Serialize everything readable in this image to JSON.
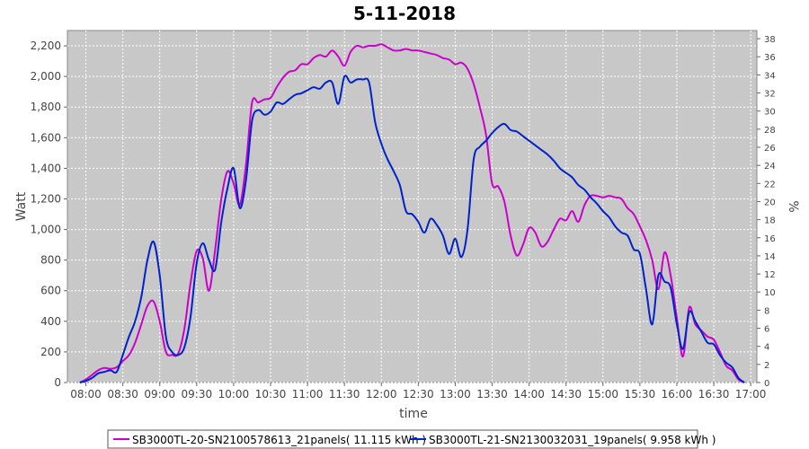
{
  "chart_data": {
    "type": "line",
    "title": "5-11-2018",
    "xlabel": "time",
    "ylabel": "Watt",
    "ylabel_right": "%",
    "xlim": [
      "07:45",
      "17:05"
    ],
    "ylim": [
      0,
      2300
    ],
    "ylim_right": [
      0,
      38.9
    ],
    "grid": true,
    "legend_position": "bottom",
    "x_ticks": [
      "08:00",
      "08:30",
      "09:00",
      "09:30",
      "10:00",
      "10:30",
      "11:00",
      "11:30",
      "12:00",
      "12:30",
      "13:00",
      "13:30",
      "14:00",
      "14:30",
      "15:00",
      "15:30",
      "16:00",
      "16:30",
      "17:00"
    ],
    "y_ticks": [
      "0",
      "200",
      "400",
      "600",
      "800",
      "1,000",
      "1,200",
      "1,400",
      "1,600",
      "1,800",
      "2,000",
      "2,200"
    ],
    "y_ticks_values": [
      0,
      200,
      400,
      600,
      800,
      1000,
      1200,
      1400,
      1600,
      1800,
      2000,
      2200
    ],
    "y_ticks_right": [
      "0",
      "2",
      "4",
      "6",
      "8",
      "10",
      "12",
      "14",
      "16",
      "18",
      "20",
      "22",
      "24",
      "26",
      "28",
      "30",
      "32",
      "34",
      "36",
      "38"
    ],
    "series": [
      {
        "name": "SB3000TL-20-SN2100578613_21panels( 11.115 kWh )",
        "color": "#cc00cc",
        "points": [
          [
            "07:55",
            0
          ],
          [
            "08:00",
            20
          ],
          [
            "08:05",
            50
          ],
          [
            "08:10",
            80
          ],
          [
            "08:15",
            95
          ],
          [
            "08:20",
            90
          ],
          [
            "08:25",
            100
          ],
          [
            "08:30",
            140
          ],
          [
            "08:35",
            180
          ],
          [
            "08:40",
            260
          ],
          [
            "08:45",
            380
          ],
          [
            "08:50",
            500
          ],
          [
            "08:55",
            530
          ],
          [
            "09:00",
            400
          ],
          [
            "09:05",
            200
          ],
          [
            "09:10",
            180
          ],
          [
            "09:15",
            190
          ],
          [
            "09:20",
            350
          ],
          [
            "09:25",
            650
          ],
          [
            "09:30",
            860
          ],
          [
            "09:35",
            810
          ],
          [
            "09:40",
            600
          ],
          [
            "09:45",
            870
          ],
          [
            "09:50",
            1200
          ],
          [
            "09:55",
            1380
          ],
          [
            "10:00",
            1300
          ],
          [
            "10:05",
            1160
          ],
          [
            "10:10",
            1420
          ],
          [
            "10:15",
            1830
          ],
          [
            "10:20",
            1830
          ],
          [
            "10:25",
            1850
          ],
          [
            "10:30",
            1860
          ],
          [
            "10:35",
            1930
          ],
          [
            "10:40",
            1990
          ],
          [
            "10:45",
            2030
          ],
          [
            "10:50",
            2040
          ],
          [
            "10:55",
            2080
          ],
          [
            "11:00",
            2080
          ],
          [
            "11:05",
            2120
          ],
          [
            "11:10",
            2140
          ],
          [
            "11:15",
            2130
          ],
          [
            "11:20",
            2170
          ],
          [
            "11:25",
            2130
          ],
          [
            "11:30",
            2070
          ],
          [
            "11:35",
            2160
          ],
          [
            "11:40",
            2200
          ],
          [
            "11:45",
            2190
          ],
          [
            "11:50",
            2200
          ],
          [
            "11:55",
            2200
          ],
          [
            "12:00",
            2210
          ],
          [
            "12:05",
            2190
          ],
          [
            "12:10",
            2170
          ],
          [
            "12:15",
            2170
          ],
          [
            "12:20",
            2180
          ],
          [
            "12:25",
            2170
          ],
          [
            "12:30",
            2170
          ],
          [
            "12:35",
            2160
          ],
          [
            "12:40",
            2150
          ],
          [
            "12:45",
            2140
          ],
          [
            "12:50",
            2120
          ],
          [
            "12:55",
            2110
          ],
          [
            "13:00",
            2080
          ],
          [
            "13:05",
            2090
          ],
          [
            "13:10",
            2050
          ],
          [
            "13:15",
            1950
          ],
          [
            "13:20",
            1800
          ],
          [
            "13:25",
            1620
          ],
          [
            "13:30",
            1300
          ],
          [
            "13:35",
            1280
          ],
          [
            "13:40",
            1180
          ],
          [
            "13:45",
            960
          ],
          [
            "13:50",
            830
          ],
          [
            "13:55",
            900
          ],
          [
            "14:00",
            1010
          ],
          [
            "14:05",
            980
          ],
          [
            "14:10",
            890
          ],
          [
            "14:15",
            920
          ],
          [
            "14:20",
            1000
          ],
          [
            "14:25",
            1070
          ],
          [
            "14:30",
            1060
          ],
          [
            "14:35",
            1120
          ],
          [
            "14:40",
            1050
          ],
          [
            "14:45",
            1160
          ],
          [
            "14:50",
            1220
          ],
          [
            "14:55",
            1220
          ],
          [
            "15:00",
            1210
          ],
          [
            "15:05",
            1220
          ],
          [
            "15:10",
            1210
          ],
          [
            "15:15",
            1200
          ],
          [
            "15:20",
            1140
          ],
          [
            "15:25",
            1100
          ],
          [
            "15:30",
            1020
          ],
          [
            "15:35",
            930
          ],
          [
            "15:40",
            800
          ],
          [
            "15:45",
            610
          ],
          [
            "15:50",
            850
          ],
          [
            "15:55",
            700
          ],
          [
            "16:00",
            420
          ],
          [
            "16:05",
            170
          ],
          [
            "16:10",
            490
          ],
          [
            "16:15",
            380
          ],
          [
            "16:20",
            340
          ],
          [
            "16:25",
            300
          ],
          [
            "16:30",
            280
          ],
          [
            "16:35",
            200
          ],
          [
            "16:40",
            110
          ],
          [
            "16:45",
            80
          ],
          [
            "16:50",
            20
          ],
          [
            "16:55",
            0
          ]
        ]
      },
      {
        "name": "SB3000TL-21-SN2130032031_19panels( 9.958 kWh )",
        "color": "#0022cc",
        "points": [
          [
            "07:55",
            0
          ],
          [
            "08:00",
            10
          ],
          [
            "08:05",
            30
          ],
          [
            "08:10",
            60
          ],
          [
            "08:15",
            70
          ],
          [
            "08:20",
            80
          ],
          [
            "08:25",
            70
          ],
          [
            "08:30",
            180
          ],
          [
            "08:35",
            300
          ],
          [
            "08:40",
            400
          ],
          [
            "08:45",
            560
          ],
          [
            "08:50",
            800
          ],
          [
            "08:55",
            920
          ],
          [
            "09:00",
            700
          ],
          [
            "09:05",
            300
          ],
          [
            "09:10",
            200
          ],
          [
            "09:15",
            180
          ],
          [
            "09:20",
            230
          ],
          [
            "09:25",
            430
          ],
          [
            "09:30",
            780
          ],
          [
            "09:35",
            910
          ],
          [
            "09:40",
            800
          ],
          [
            "09:45",
            740
          ],
          [
            "09:50",
            1050
          ],
          [
            "09:55",
            1270
          ],
          [
            "10:00",
            1400
          ],
          [
            "10:05",
            1140
          ],
          [
            "10:10",
            1320
          ],
          [
            "10:15",
            1710
          ],
          [
            "10:20",
            1780
          ],
          [
            "10:25",
            1750
          ],
          [
            "10:30",
            1770
          ],
          [
            "10:35",
            1830
          ],
          [
            "10:40",
            1820
          ],
          [
            "10:45",
            1850
          ],
          [
            "10:50",
            1880
          ],
          [
            "10:55",
            1890
          ],
          [
            "11:00",
            1910
          ],
          [
            "11:05",
            1930
          ],
          [
            "11:10",
            1920
          ],
          [
            "11:15",
            1960
          ],
          [
            "11:20",
            1960
          ],
          [
            "11:25",
            1820
          ],
          [
            "11:30",
            2000
          ],
          [
            "11:35",
            1960
          ],
          [
            "11:40",
            1980
          ],
          [
            "11:45",
            1980
          ],
          [
            "11:50",
            1960
          ],
          [
            "11:55",
            1700
          ],
          [
            "12:00",
            1560
          ],
          [
            "12:05",
            1460
          ],
          [
            "12:10",
            1380
          ],
          [
            "12:15",
            1290
          ],
          [
            "12:20",
            1120
          ],
          [
            "12:25",
            1100
          ],
          [
            "12:30",
            1050
          ],
          [
            "12:35",
            980
          ],
          [
            "12:40",
            1070
          ],
          [
            "12:45",
            1030
          ],
          [
            "12:50",
            960
          ],
          [
            "12:55",
            840
          ],
          [
            "13:00",
            940
          ],
          [
            "13:05",
            820
          ],
          [
            "13:10",
            1000
          ],
          [
            "13:15",
            1460
          ],
          [
            "13:20",
            1540
          ],
          [
            "13:25",
            1580
          ],
          [
            "13:30",
            1630
          ],
          [
            "13:35",
            1670
          ],
          [
            "13:40",
            1690
          ],
          [
            "13:45",
            1650
          ],
          [
            "13:50",
            1640
          ],
          [
            "13:55",
            1610
          ],
          [
            "14:00",
            1580
          ],
          [
            "14:05",
            1550
          ],
          [
            "14:10",
            1520
          ],
          [
            "14:15",
            1490
          ],
          [
            "14:20",
            1450
          ],
          [
            "14:25",
            1400
          ],
          [
            "14:30",
            1370
          ],
          [
            "14:35",
            1340
          ],
          [
            "14:40",
            1290
          ],
          [
            "14:45",
            1260
          ],
          [
            "14:50",
            1210
          ],
          [
            "14:55",
            1170
          ],
          [
            "15:00",
            1120
          ],
          [
            "15:05",
            1080
          ],
          [
            "15:10",
            1020
          ],
          [
            "15:15",
            980
          ],
          [
            "15:20",
            960
          ],
          [
            "15:25",
            870
          ],
          [
            "15:30",
            840
          ],
          [
            "15:35",
            610
          ],
          [
            "15:40",
            380
          ],
          [
            "15:45",
            700
          ],
          [
            "15:50",
            660
          ],
          [
            "15:55",
            620
          ],
          [
            "16:00",
            380
          ],
          [
            "16:05",
            220
          ],
          [
            "16:10",
            460
          ],
          [
            "16:15",
            400
          ],
          [
            "16:20",
            330
          ],
          [
            "16:25",
            260
          ],
          [
            "16:30",
            250
          ],
          [
            "16:35",
            180
          ],
          [
            "16:40",
            130
          ],
          [
            "16:45",
            100
          ],
          [
            "16:50",
            30
          ],
          [
            "16:55",
            0
          ]
        ]
      }
    ]
  }
}
